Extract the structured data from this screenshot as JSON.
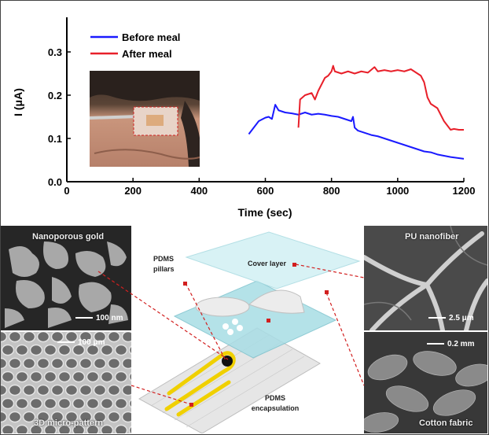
{
  "chart_data": {
    "type": "line",
    "xlabel": "Time (sec)",
    "ylabel": "I (μA)",
    "xlim": [
      0,
      1200
    ],
    "ylim": [
      0,
      0.38
    ],
    "x_ticks": [
      0,
      200,
      400,
      600,
      800,
      1000,
      1200
    ],
    "y_ticks": [
      0.0,
      0.1,
      0.2,
      0.3
    ],
    "legend_position": "top-left",
    "series": [
      {
        "name": "Before meal",
        "color": "#1a1aff",
        "points": [
          [
            550,
            0.11
          ],
          [
            560,
            0.12
          ],
          [
            580,
            0.14
          ],
          [
            600,
            0.148
          ],
          [
            610,
            0.15
          ],
          [
            620,
            0.145
          ],
          [
            630,
            0.178
          ],
          [
            640,
            0.165
          ],
          [
            660,
            0.16
          ],
          [
            680,
            0.158
          ],
          [
            700,
            0.155
          ],
          [
            720,
            0.16
          ],
          [
            740,
            0.155
          ],
          [
            760,
            0.157
          ],
          [
            780,
            0.155
          ],
          [
            800,
            0.152
          ],
          [
            820,
            0.15
          ],
          [
            840,
            0.145
          ],
          [
            860,
            0.14
          ],
          [
            865,
            0.15
          ],
          [
            870,
            0.125
          ],
          [
            880,
            0.118
          ],
          [
            900,
            0.113
          ],
          [
            920,
            0.108
          ],
          [
            940,
            0.105
          ],
          [
            960,
            0.1
          ],
          [
            980,
            0.095
          ],
          [
            1000,
            0.09
          ],
          [
            1020,
            0.085
          ],
          [
            1040,
            0.08
          ],
          [
            1060,
            0.075
          ],
          [
            1080,
            0.07
          ],
          [
            1100,
            0.068
          ],
          [
            1120,
            0.063
          ],
          [
            1140,
            0.06
          ],
          [
            1160,
            0.057
          ],
          [
            1180,
            0.055
          ],
          [
            1200,
            0.053
          ]
        ]
      },
      {
        "name": "After meal",
        "color": "#e8202a",
        "points": [
          [
            700,
            0.125
          ],
          [
            705,
            0.19
          ],
          [
            720,
            0.2
          ],
          [
            740,
            0.205
          ],
          [
            750,
            0.19
          ],
          [
            760,
            0.21
          ],
          [
            780,
            0.24
          ],
          [
            790,
            0.245
          ],
          [
            800,
            0.255
          ],
          [
            805,
            0.268
          ],
          [
            810,
            0.255
          ],
          [
            830,
            0.25
          ],
          [
            850,
            0.255
          ],
          [
            870,
            0.25
          ],
          [
            890,
            0.255
          ],
          [
            910,
            0.252
          ],
          [
            930,
            0.265
          ],
          [
            940,
            0.255
          ],
          [
            960,
            0.258
          ],
          [
            980,
            0.255
          ],
          [
            1000,
            0.258
          ],
          [
            1020,
            0.255
          ],
          [
            1040,
            0.26
          ],
          [
            1060,
            0.25
          ],
          [
            1070,
            0.245
          ],
          [
            1080,
            0.23
          ],
          [
            1090,
            0.195
          ],
          [
            1100,
            0.18
          ],
          [
            1110,
            0.175
          ],
          [
            1120,
            0.17
          ],
          [
            1130,
            0.155
          ],
          [
            1140,
            0.14
          ],
          [
            1150,
            0.13
          ],
          [
            1160,
            0.12
          ],
          [
            1170,
            0.122
          ],
          [
            1185,
            0.12
          ],
          [
            1200,
            0.12
          ]
        ]
      }
    ]
  },
  "panels": {
    "nanoporous_gold": {
      "title": "Nanoporous gold",
      "scale": "100 nm"
    },
    "micro_pattern": {
      "title": "3D micro-pattern",
      "scale": "100 μm"
    },
    "pu_nanofiber": {
      "title": "PU nanofiber",
      "scale": "2.5 μm"
    },
    "cotton_fabric": {
      "title": "Cotton fabric",
      "scale": "0.2 mm"
    }
  },
  "schematic": {
    "pdms_pillars": [
      "PDMS",
      "pillars"
    ],
    "cover_layer": "Cover layer",
    "pdms_encapsulation": [
      "PDMS",
      "encapsulation"
    ]
  }
}
